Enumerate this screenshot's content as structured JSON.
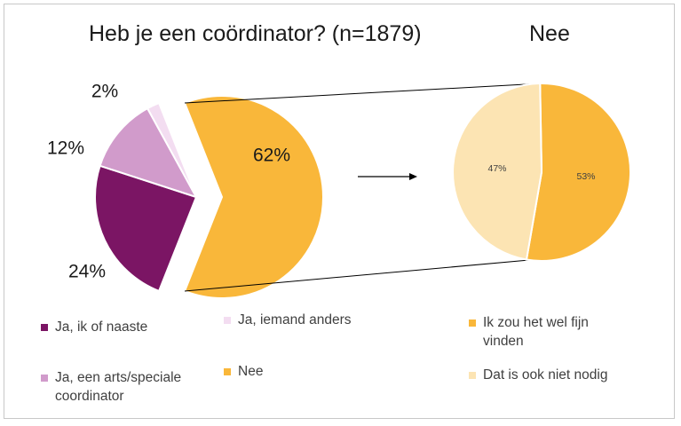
{
  "chart_data": [
    {
      "type": "pie",
      "title": "Heb je een coördinator? (n=1879)",
      "slices": [
        {
          "label": "Nee",
          "value": 62,
          "data_label": "62%",
          "color": "#F9B73A",
          "exploded": true
        },
        {
          "label": "Ja, ik of naaste",
          "value": 24,
          "data_label": "24%",
          "color": "#7B1564"
        },
        {
          "label": "Ja, een arts/speciale coordinator",
          "value": 12,
          "data_label": "12%",
          "color": "#D19BCB"
        },
        {
          "label": "Ja, iemand anders",
          "value": 2,
          "data_label": "2%",
          "color": "#F3DDF1"
        }
      ]
    },
    {
      "type": "pie",
      "title": "Nee",
      "slices": [
        {
          "label": "Ik zou het wel fijn vinden",
          "value": 53,
          "data_label": "53%",
          "color": "#F9B73A"
        },
        {
          "label": "Dat is ook niet nodig",
          "value": 47,
          "data_label": "47%",
          "color": "#FCE4B3"
        }
      ]
    }
  ],
  "legend": [
    {
      "label": "Ja, ik of naaste",
      "color": "#7B1564"
    },
    {
      "label": "Ja, iemand anders",
      "color": "#F3DDF1"
    },
    {
      "label": "Ja, een arts/speciale coordinator",
      "color": "#D19BCB"
    },
    {
      "label": "Nee",
      "color": "#F9B73A"
    },
    {
      "label": "Ik zou het wel fijn vinden",
      "color": "#F9B73A"
    },
    {
      "label": "Dat is ook niet nodig",
      "color": "#FCE4B3"
    }
  ]
}
